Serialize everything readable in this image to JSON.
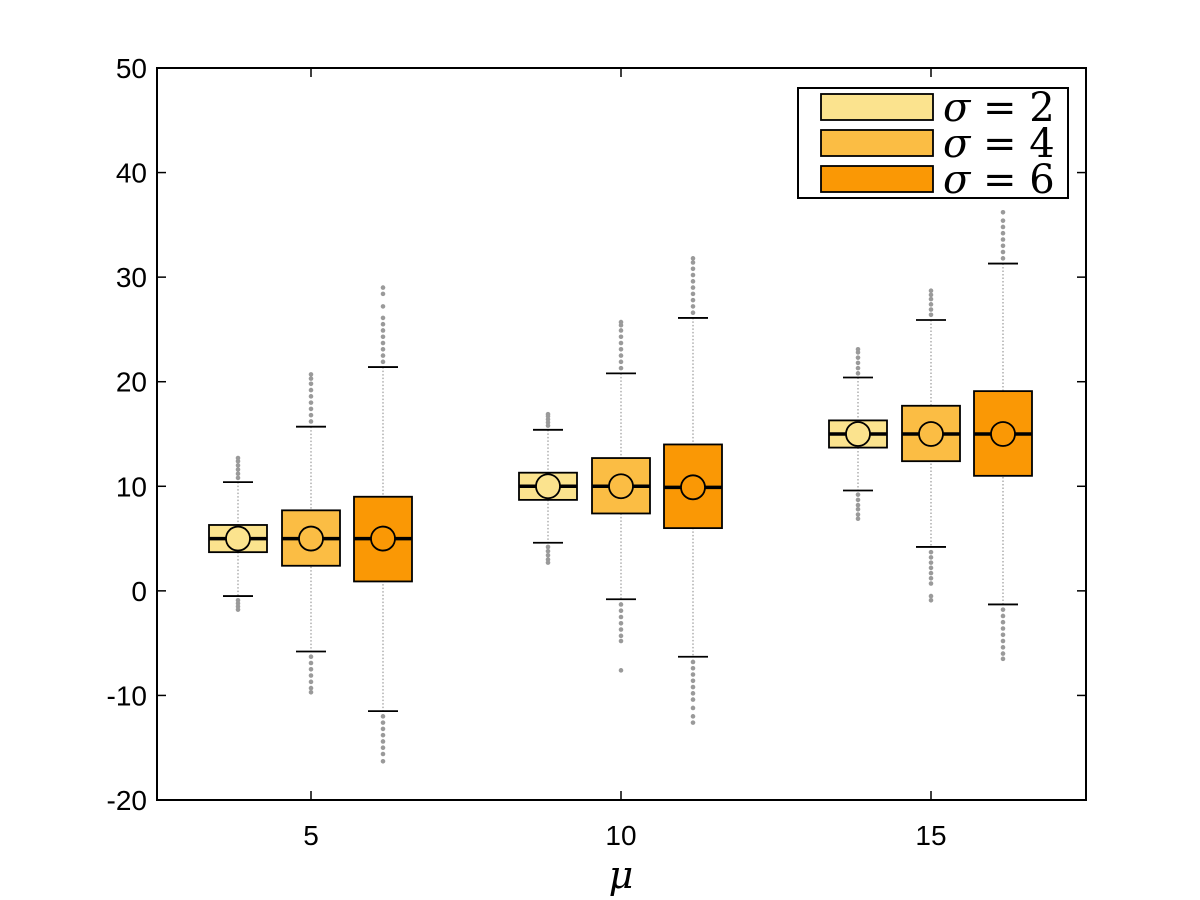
{
  "chart_data": {
    "type": "boxplot",
    "title": "",
    "xlabel": "μ",
    "ylabel": "",
    "categories": [
      "5",
      "10",
      "15"
    ],
    "ylim": [
      -20,
      50
    ],
    "yticks": [
      -20,
      -10,
      0,
      10,
      20,
      30,
      40,
      50
    ],
    "grid": false,
    "legend_position": "top-right",
    "series": [
      {
        "name": "σ = 2",
        "legend_symbol": "σ",
        "legend_value": "= 2",
        "color": "#FBE38E",
        "boxes": [
          {
            "category": "5",
            "whisker_low": -0.5,
            "q1": 3.7,
            "median": 5.0,
            "q3": 6.3,
            "whisker_high": 10.4,
            "mean": 5.0,
            "outliers": [
              10.8,
              11.2,
              11.6,
              12.0,
              12.4,
              12.7,
              -0.9,
              -1.2,
              -1.5,
              -1.8
            ]
          },
          {
            "category": "10",
            "whisker_low": 4.6,
            "q1": 8.7,
            "median": 10.0,
            "q3": 11.3,
            "whisker_high": 15.4,
            "mean": 10.0,
            "outliers": [
              15.8,
              16.1,
              16.4,
              16.7,
              16.9,
              4.2,
              3.8,
              3.4,
              3.0,
              2.7
            ]
          },
          {
            "category": "15",
            "whisker_low": 9.6,
            "q1": 13.7,
            "median": 15.0,
            "q3": 16.3,
            "whisker_high": 20.4,
            "mean": 15.0,
            "outliers": [
              20.8,
              21.3,
              21.8,
              22.3,
              22.8,
              23.1,
              9.2,
              8.7,
              8.2,
              7.8,
              7.3,
              6.9
            ]
          }
        ]
      },
      {
        "name": "σ = 4",
        "legend_symbol": "σ",
        "legend_value": "= 4",
        "color": "#FBBD44",
        "boxes": [
          {
            "category": "5",
            "whisker_low": -5.8,
            "q1": 2.4,
            "median": 5.0,
            "q3": 7.7,
            "whisker_high": 15.7,
            "mean": 5.0,
            "outliers": [
              16.2,
              16.8,
              17.4,
              18.0,
              18.6,
              19.2,
              19.8,
              20.3,
              20.7,
              -6.3,
              -6.9,
              -7.5,
              -8.1,
              -8.7,
              -9.3,
              -9.7
            ]
          },
          {
            "category": "10",
            "whisker_low": -0.8,
            "q1": 7.4,
            "median": 10.0,
            "q3": 12.7,
            "whisker_high": 20.8,
            "mean": 10.0,
            "outliers": [
              21.3,
              21.9,
              22.5,
              23.1,
              23.7,
              24.3,
              24.9,
              25.4,
              25.7,
              -1.3,
              -1.9,
              -2.5,
              -3.1,
              -3.7,
              -4.3,
              -4.8,
              -7.6
            ]
          },
          {
            "category": "15",
            "whisker_low": 4.2,
            "q1": 12.4,
            "median": 15.0,
            "q3": 17.7,
            "whisker_high": 25.9,
            "mean": 15.0,
            "outliers": [
              26.4,
              26.9,
              27.4,
              27.9,
              28.3,
              28.7,
              3.7,
              3.2,
              2.7,
              2.2,
              1.7,
              1.2,
              0.7,
              -0.5,
              -0.9
            ]
          }
        ]
      },
      {
        "name": "σ = 6",
        "legend_symbol": "σ",
        "legend_value": "= 6",
        "color": "#FA9805",
        "boxes": [
          {
            "category": "5",
            "whisker_low": -11.5,
            "q1": 0.9,
            "median": 5.0,
            "q3": 9.0,
            "whisker_high": 21.4,
            "mean": 5.0,
            "outliers": [
              21.9,
              22.5,
              23.1,
              23.7,
              24.3,
              24.9,
              25.5,
              26.1,
              27.2,
              28.4,
              29.0,
              -12.0,
              -12.6,
              -13.2,
              -13.8,
              -14.4,
              -15.0,
              -15.6,
              -16.3
            ]
          },
          {
            "category": "10",
            "whisker_low": -6.3,
            "q1": 6.0,
            "median": 9.9,
            "q3": 14.0,
            "whisker_high": 26.1,
            "mean": 9.9,
            "outliers": [
              26.6,
              27.2,
              27.8,
              28.4,
              29.0,
              29.6,
              30.2,
              30.8,
              31.4,
              31.8,
              -6.8,
              -7.4,
              -8.0,
              -8.6,
              -9.2,
              -9.8,
              -10.4,
              -11.2,
              -12.0,
              -12.6
            ]
          },
          {
            "category": "15",
            "whisker_low": -1.3,
            "q1": 11.0,
            "median": 15.0,
            "q3": 19.1,
            "whisker_high": 31.3,
            "mean": 15.0,
            "outliers": [
              31.8,
              32.4,
              33.0,
              33.6,
              34.2,
              34.8,
              35.4,
              36.2,
              -1.8,
              -2.4,
              -3.0,
              -3.6,
              -4.2,
              -4.8,
              -5.4,
              -6.0,
              -6.5
            ]
          }
        ]
      }
    ]
  }
}
